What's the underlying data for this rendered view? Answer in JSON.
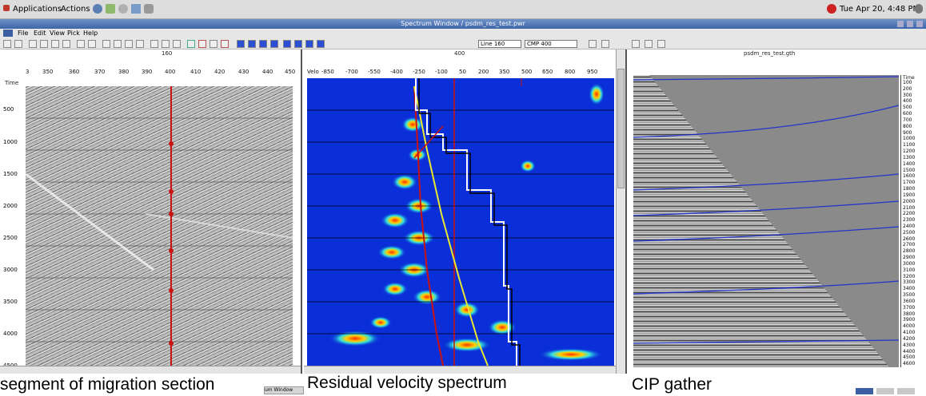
{
  "desktop": {
    "menu_applications": "Applications",
    "menu_actions": "Actions",
    "clock": "Tue Apr 20,  4:48 PM"
  },
  "window": {
    "title": "Spectrum Window / psdm_res_test.pwr",
    "menus": [
      "File",
      "Edit",
      "View",
      "Pick",
      "Help"
    ],
    "line_select": "Line 160",
    "cmp_select": "CMP 400"
  },
  "left_panel": {
    "header": "160",
    "x_ticks": [
      "3",
      "350",
      "360",
      "370",
      "380",
      "390",
      "400",
      "410",
      "420",
      "430",
      "440",
      "450"
    ],
    "y_label": "Time",
    "y_ticks": [
      "500",
      "1000",
      "1500",
      "2000",
      "2500",
      "3000",
      "3500",
      "4000",
      "4500"
    ],
    "caption": "segment of migration section"
  },
  "middle_panel": {
    "header": "400",
    "x_label": "Velo",
    "x_ticks": [
      "-850",
      "-700",
      "-550",
      "-400",
      "-250",
      "-100",
      "50",
      "200",
      "350",
      "500",
      "650",
      "800",
      "950"
    ],
    "caption": "Residual velocity spectrum"
  },
  "right_panel": {
    "header": "psdm_res_test.gth",
    "y_label": "Time",
    "time_ticks": [
      "100",
      "200",
      "300",
      "400",
      "500",
      "600",
      "700",
      "800",
      "900",
      "1000",
      "1100",
      "1200",
      "1300",
      "1400",
      "1500",
      "1600",
      "1700",
      "1800",
      "1900",
      "2000",
      "2100",
      "2200",
      "2300",
      "2400",
      "2500",
      "2600",
      "2700",
      "2800",
      "2900",
      "3000",
      "3100",
      "3200",
      "3300",
      "3400",
      "3500",
      "3600",
      "3700",
      "3800",
      "3900",
      "4000",
      "4100",
      "4200",
      "4300",
      "4400",
      "4500",
      "4600"
    ],
    "caption": "CIP gather"
  },
  "taskbar": {
    "item": "um Window"
  },
  "colors": {
    "pick_line": "#cc1111",
    "spectrum_bg": "#0a2fd8",
    "guide": "#e8e830",
    "horizon": "#2233cc"
  }
}
